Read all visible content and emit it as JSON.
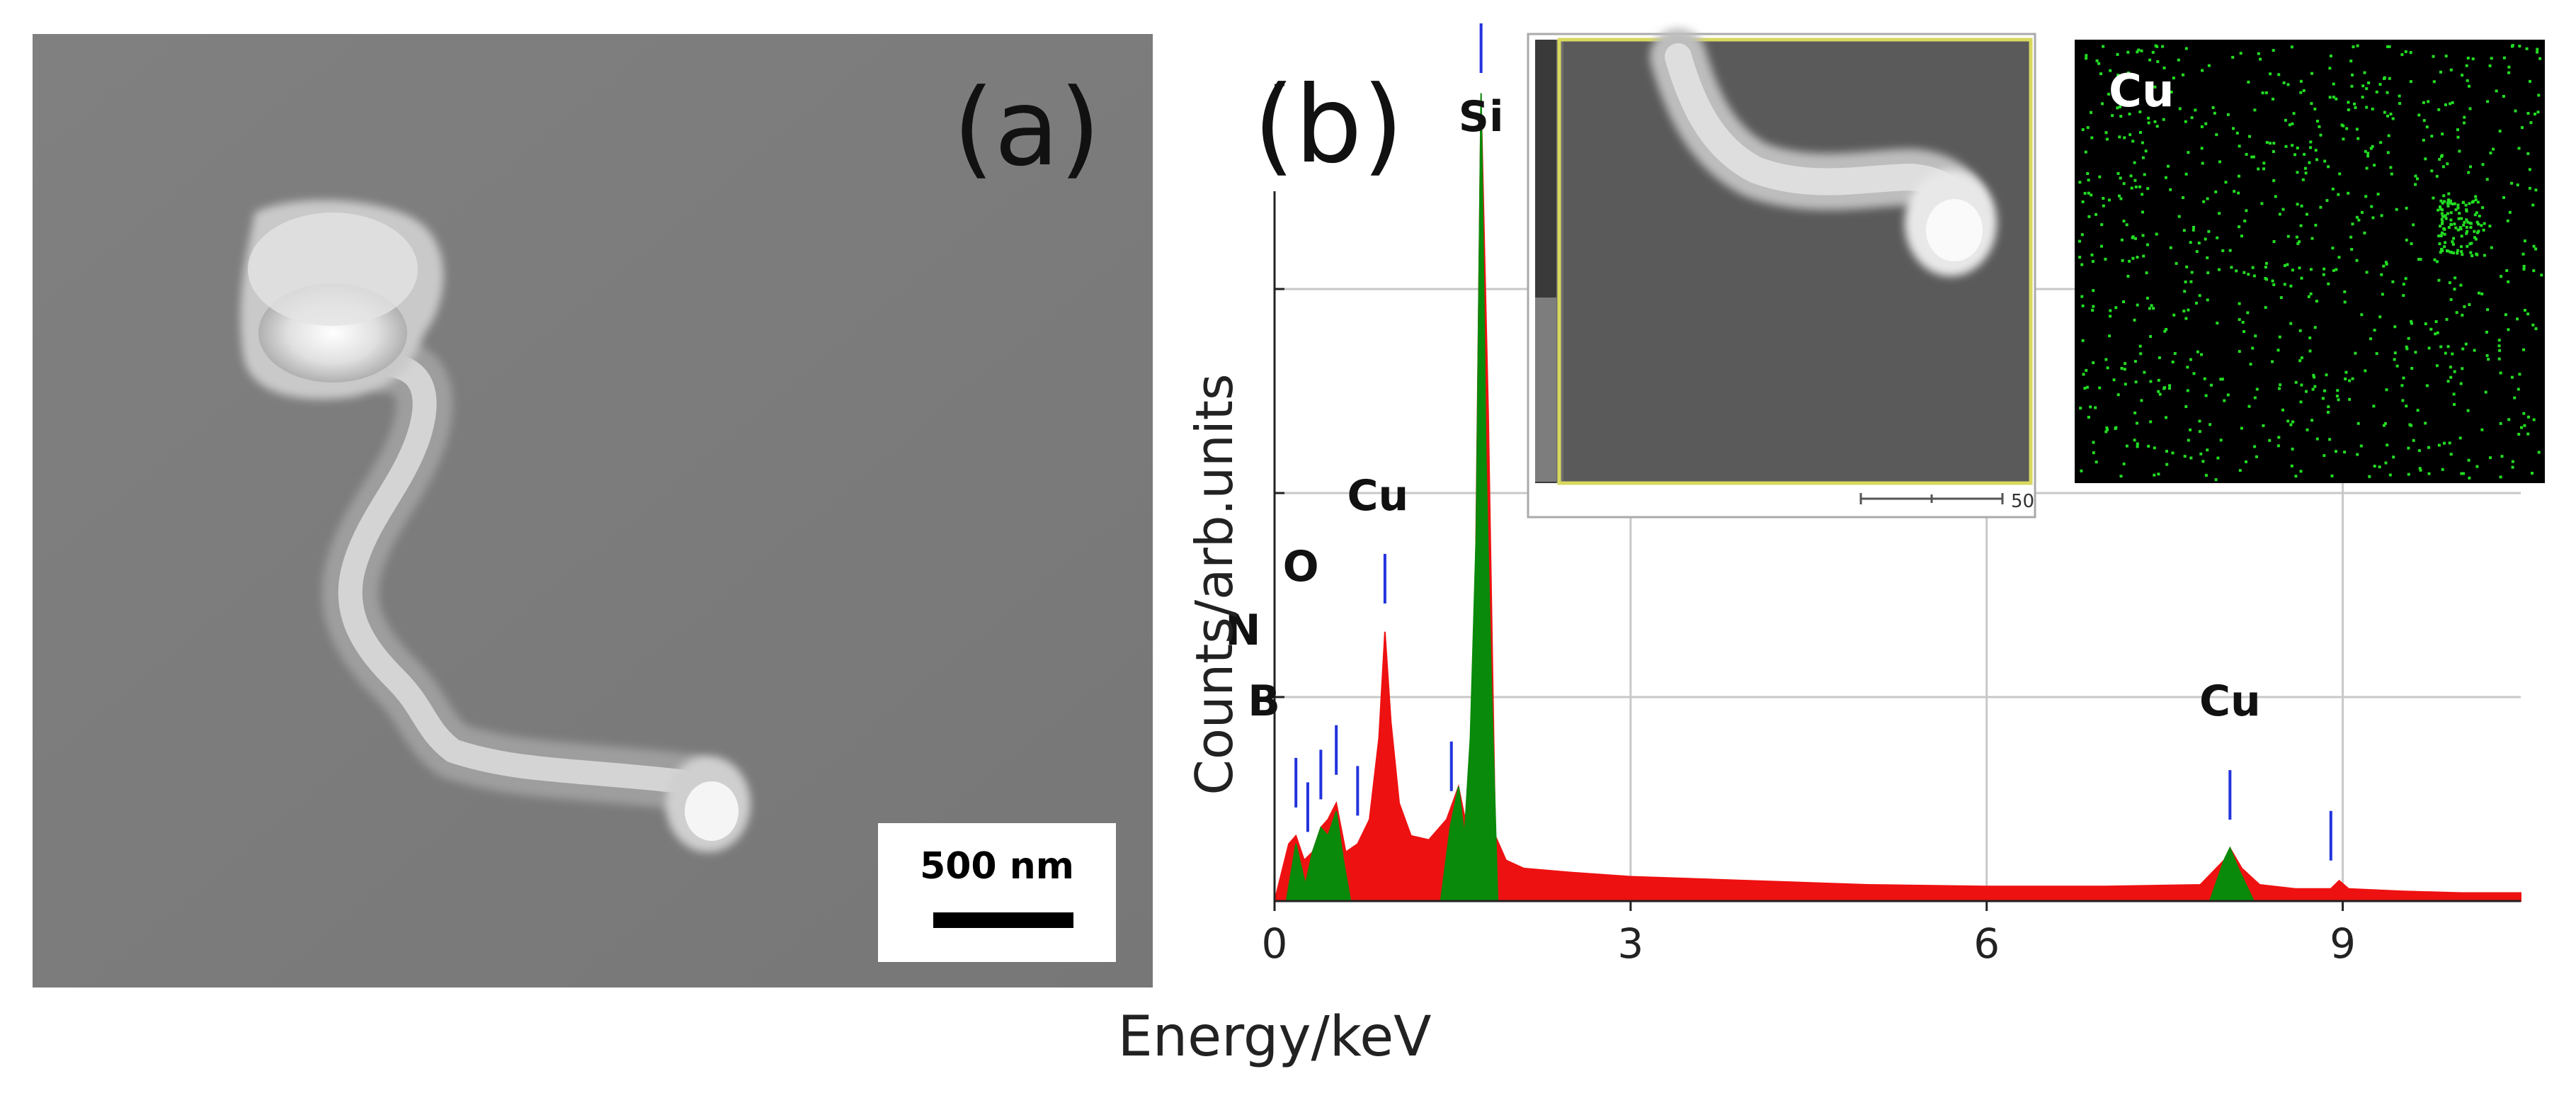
{
  "panel_a": {
    "label": "(a)",
    "scale_bar_text": "500 nm"
  },
  "panel_b": {
    "label": "(b)",
    "inset_scale_text": "50",
    "map_label": "Cu"
  },
  "colors": {
    "spectrum_fill": "#ee1111",
    "peak_fill": "#0a8a0a",
    "marker": "#2233dd",
    "grid": "#c8c8c8",
    "map_dot": "#22dd22",
    "sem_bg": "#7c7c7c"
  },
  "chart_data": {
    "type": "area",
    "title": "",
    "xlabel": "Energy/keV",
    "ylabel": "Counts/arb.units",
    "xlim": [
      0,
      10.5
    ],
    "ylim": [
      0,
      100
    ],
    "xticks": [
      0,
      3,
      6,
      9
    ],
    "x_tick_labels": [
      "0",
      "3",
      "6",
      "9"
    ],
    "grid": true,
    "element_labels": [
      {
        "text": "Si",
        "energy": 1.74
      },
      {
        "text": "Cu",
        "energy": 0.93
      },
      {
        "text": "O",
        "energy": 0.52
      },
      {
        "text": "N",
        "energy": 0.39
      },
      {
        "text": "B",
        "energy": 0.18
      },
      {
        "text": "Cu",
        "energy": 8.05
      }
    ],
    "series": [
      {
        "name": "spectrum",
        "color": "red",
        "x": [
          0.0,
          0.12,
          0.18,
          0.25,
          0.32,
          0.39,
          0.45,
          0.52,
          0.6,
          0.7,
          0.8,
          0.88,
          0.93,
          0.98,
          1.05,
          1.15,
          1.3,
          1.45,
          1.55,
          1.62,
          1.68,
          1.74,
          1.8,
          1.86,
          1.95,
          2.1,
          2.5,
          3.0,
          4.0,
          5.0,
          6.0,
          7.0,
          7.8,
          8.0,
          8.05,
          8.15,
          8.3,
          8.6,
          8.9,
          8.97,
          9.05,
          9.5,
          10.0,
          10.5
        ],
        "y": [
          0.0,
          7.0,
          8.0,
          5.0,
          6.0,
          9.0,
          10.0,
          12.0,
          6.0,
          7.0,
          10.0,
          20.0,
          33.0,
          22.0,
          12.0,
          8.0,
          7.5,
          10.0,
          14.0,
          9.0,
          22.0,
          98.0,
          60.0,
          8.0,
          5.0,
          4.0,
          3.5,
          3.0,
          2.5,
          2.0,
          1.8,
          1.8,
          2.0,
          5.0,
          6.5,
          4.0,
          2.0,
          1.5,
          1.5,
          2.5,
          1.5,
          1.2,
          1.0,
          1.0
        ]
      },
      {
        "name": "element_peaks",
        "color": "green",
        "x": [
          0.1,
          0.18,
          0.26,
          0.32,
          0.39,
          0.45,
          0.52,
          0.58,
          0.64,
          1.4,
          1.48,
          1.55,
          1.6,
          1.65,
          1.7,
          1.74,
          1.78,
          1.82,
          1.88,
          7.88,
          8.0,
          8.05,
          8.12,
          8.25
        ],
        "y": [
          0.0,
          7.0,
          2.0,
          6.0,
          9.0,
          8.0,
          11.0,
          5.0,
          0.0,
          0.0,
          9.0,
          14.0,
          8.0,
          20.0,
          45.0,
          99.0,
          55.0,
          30.0,
          0.0,
          0.0,
          5.0,
          6.5,
          4.0,
          0.0
        ]
      }
    ],
    "marker_energies": [
      0.18,
      0.28,
      0.39,
      0.52,
      0.7,
      0.93,
      1.49,
      1.74,
      8.05,
      8.9
    ]
  }
}
